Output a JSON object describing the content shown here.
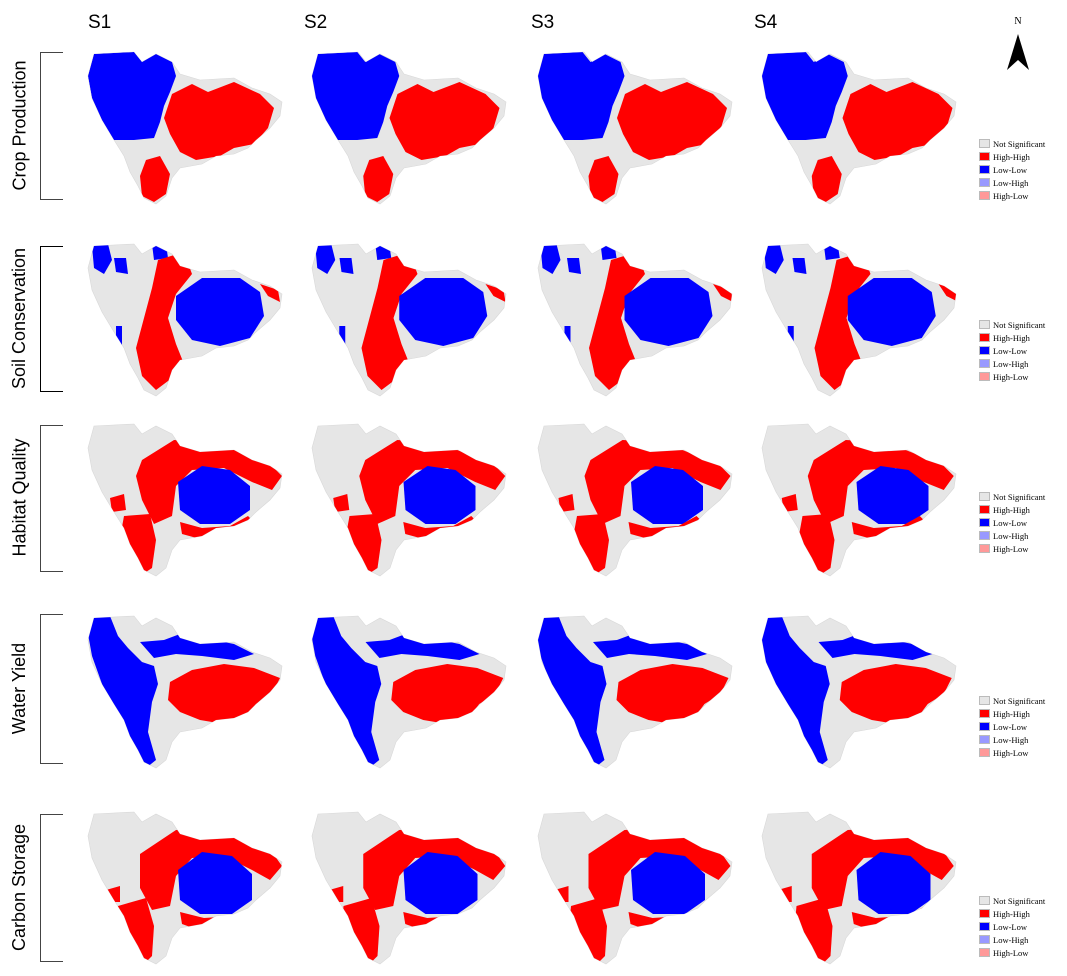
{
  "columns": [
    "S1",
    "S2",
    "S3",
    "S4"
  ],
  "rows": [
    {
      "label": "Crop Production"
    },
    {
      "label": "Soil Conservation"
    },
    {
      "label": "Habitat Quality"
    },
    {
      "label": "Water Yield"
    },
    {
      "label": "Carbon Storage"
    }
  ],
  "north_label": "N",
  "legend": [
    {
      "label": "Not Significant",
      "color": "#e6e6e6"
    },
    {
      "label": "High-High",
      "color": "#ff0000"
    },
    {
      "label": "Low-Low",
      "color": "#0000ff"
    },
    {
      "label": "Low-High",
      "color": "#9999ff"
    },
    {
      "label": "High-Low",
      "color": "#ff9999"
    }
  ],
  "colors": {
    "grey": "#e6e6e6",
    "red": "#ff0000",
    "blue": "#0000ff"
  }
}
